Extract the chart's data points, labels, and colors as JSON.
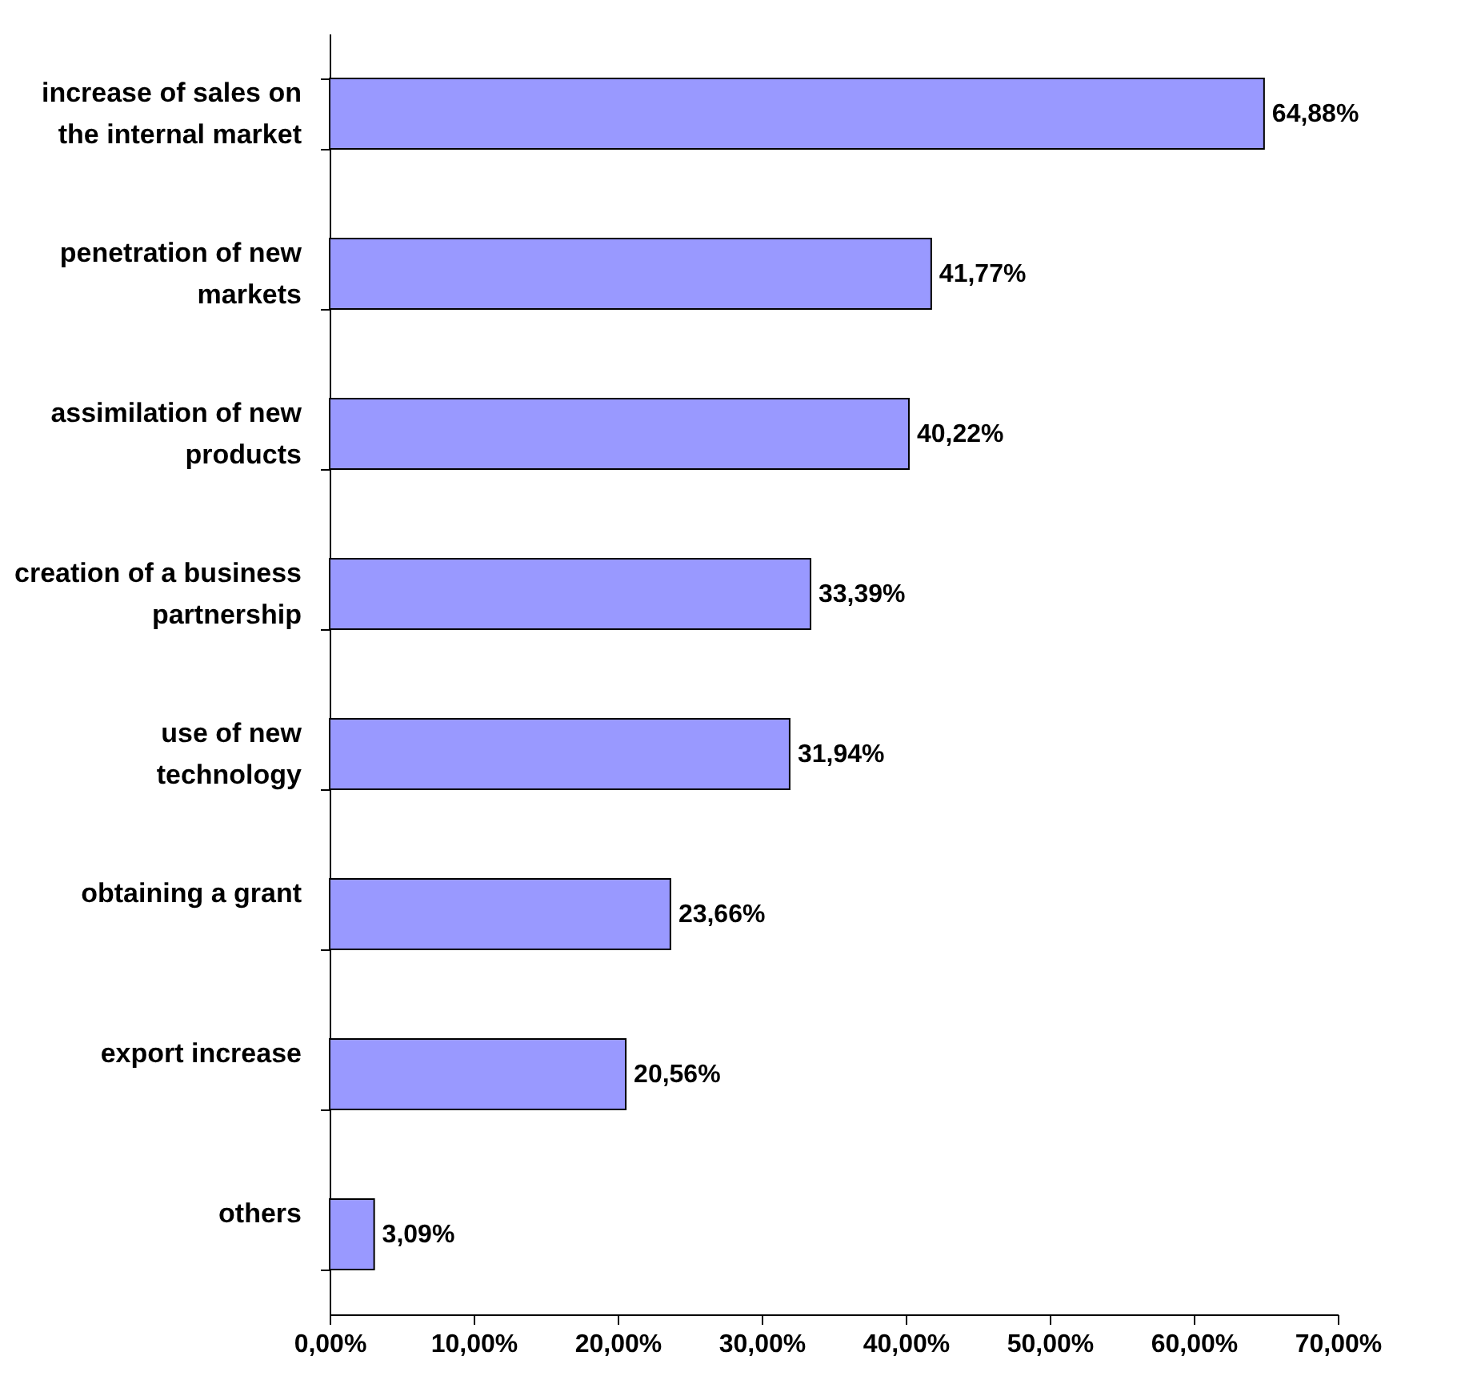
{
  "chart_data": {
    "type": "bar",
    "orientation": "horizontal",
    "categories": [
      "increase of sales on\nthe internal market",
      "penetration of new\nmarkets",
      "assimilation of new\nproducts",
      "creation of a business\npartnership",
      "use of new\ntechnology",
      "obtaining a grant",
      "export increase",
      "others"
    ],
    "series": [
      {
        "color": "#9999ff",
        "values": [
          64.88,
          41.77,
          40.22,
          33.39,
          31.94,
          23.66,
          20.56,
          3.09
        ],
        "value_labels": [
          "64,88%",
          "41,77%",
          "40,22%",
          "33,39%",
          "31,94%",
          "23,66%",
          "20,56%",
          "3,09%"
        ]
      }
    ],
    "xlim": [
      0,
      70
    ],
    "xticks": [
      {
        "value": 0,
        "label": "0,00%"
      },
      {
        "value": 10,
        "label": "10,00%"
      },
      {
        "value": 20,
        "label": "20,00%"
      },
      {
        "value": 30,
        "label": "30,00%"
      },
      {
        "value": 40,
        "label": "40,00%"
      },
      {
        "value": 50,
        "label": "50,00%"
      },
      {
        "value": 60,
        "label": "60,00%"
      },
      {
        "value": 70,
        "label": "70,00%"
      }
    ],
    "grid": false
  }
}
